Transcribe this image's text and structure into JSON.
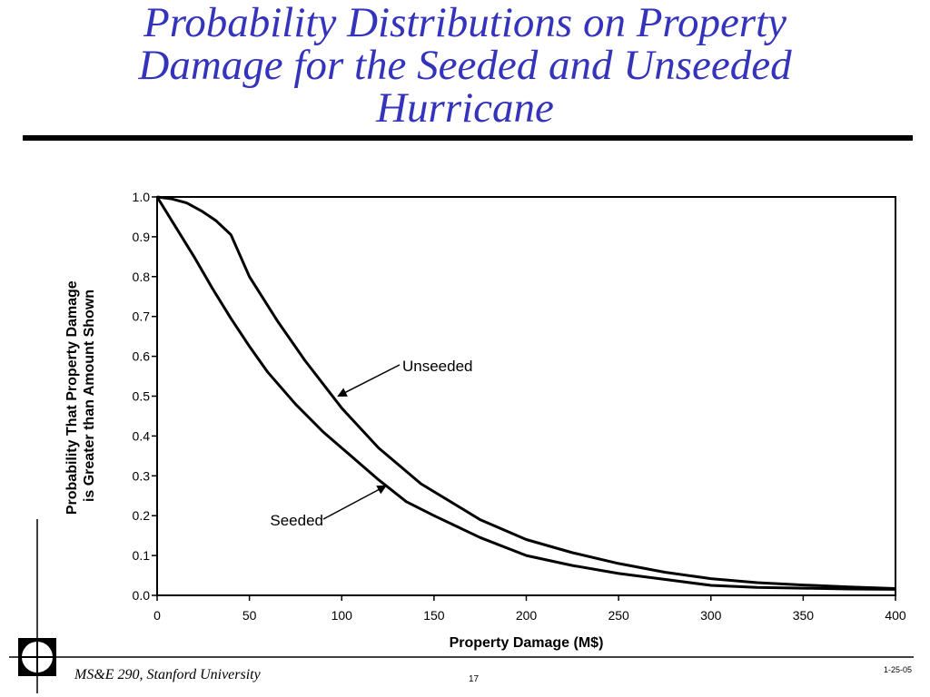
{
  "slide": {
    "title_lines": [
      "Probability Distributions on Property",
      "Damage for the Seeded and Unseeded",
      "Hurricane"
    ],
    "footer_left": "MS&E 290, Stanford University",
    "page_number": "17",
    "date": "1-25-05",
    "title_color": "#3333bb"
  },
  "chart_data": {
    "type": "line",
    "xlabel": "Property Damage (M$)",
    "ylabel_lines": [
      "Probability That Property Damage",
      "is Greater than Amount Shown"
    ],
    "xlim": [
      0,
      400
    ],
    "ylim": [
      0,
      1.0
    ],
    "xticks": [
      0,
      50,
      100,
      150,
      200,
      250,
      300,
      350,
      400
    ],
    "yticks": [
      0.0,
      0.1,
      0.2,
      0.3,
      0.4,
      0.5,
      0.6,
      0.7,
      0.8,
      0.9,
      1.0
    ],
    "xtick_labels": [
      "0",
      "50",
      "100",
      "150",
      "200",
      "250",
      "300",
      "350",
      "400"
    ],
    "ytick_labels": [
      "0.0",
      "0.1",
      "0.2",
      "0.3",
      "0.4",
      "0.5",
      "0.6",
      "0.7",
      "0.8",
      "0.9",
      "1.0"
    ],
    "grid": false,
    "series": [
      {
        "name": "Unseeded",
        "x": [
          0,
          8,
          16,
          24,
          32,
          40,
          50,
          65,
          80,
          100,
          120,
          143,
          175,
          200,
          225,
          250,
          275,
          300,
          325,
          350,
          375,
          400
        ],
        "y": [
          1.0,
          0.995,
          0.985,
          0.965,
          0.94,
          0.905,
          0.8,
          0.69,
          0.59,
          0.47,
          0.37,
          0.28,
          0.19,
          0.14,
          0.107,
          0.08,
          0.058,
          0.042,
          0.032,
          0.026,
          0.021,
          0.017
        ]
      },
      {
        "name": "Seeded",
        "x": [
          0,
          10,
          20,
          30,
          40,
          50,
          60,
          75,
          90,
          100,
          120,
          135,
          150,
          175,
          200,
          225,
          250,
          275,
          300,
          325,
          350,
          375,
          400
        ],
        "y": [
          1.0,
          0.925,
          0.85,
          0.77,
          0.695,
          0.625,
          0.56,
          0.48,
          0.41,
          0.37,
          0.29,
          0.235,
          0.2,
          0.145,
          0.1,
          0.075,
          0.055,
          0.04,
          0.025,
          0.02,
          0.018,
          0.016,
          0.015
        ]
      }
    ],
    "annotations": [
      {
        "text": "Unseeded",
        "series": "Unseeded",
        "point": [
          98,
          0.5
        ]
      },
      {
        "text": "Seeded",
        "series": "Seeded",
        "point": [
          124,
          0.275
        ]
      }
    ]
  }
}
